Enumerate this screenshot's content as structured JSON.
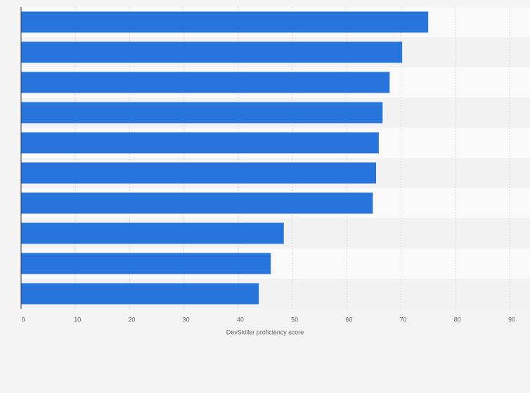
{
  "chart_data": {
    "type": "hbar",
    "categories": [
      null,
      null,
      null,
      null,
      null,
      null,
      null,
      null,
      null,
      null
    ],
    "values": [
      75.0,
      70.2,
      67.9,
      66.6,
      65.9,
      65.4,
      64.8,
      48.4,
      46.0,
      43.8
    ],
    "color": "#2876dd",
    "xlabel": "DevSkiller proficiency score",
    "xlim": [
      0,
      90
    ],
    "xticks": [
      0,
      10,
      20,
      30,
      40,
      50,
      60,
      70,
      80,
      90
    ],
    "grid": true
  }
}
